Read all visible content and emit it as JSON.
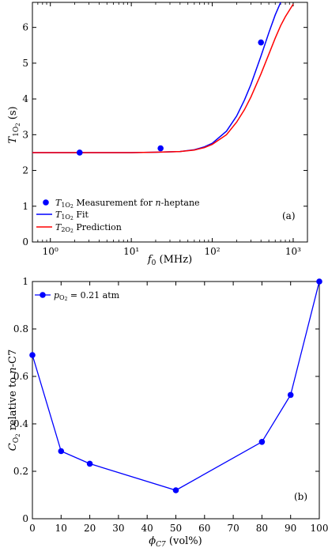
{
  "chart_data": [
    {
      "type": "line",
      "panel_label": "(a)",
      "xlabel": "f0 (MHz)",
      "ylabel": "T1O2 (s)",
      "xscale": "log",
      "xlim": [
        0.6,
        1500
      ],
      "ylim": [
        0,
        6.7
      ],
      "xticks": [
        1,
        10,
        100,
        1000
      ],
      "xtick_labels": [
        "10⁰",
        "10¹",
        "10²",
        "10³"
      ],
      "yticks": [
        0,
        1,
        2,
        3,
        4,
        5,
        6
      ],
      "ytick_labels": [
        "0",
        "1",
        "2",
        "3",
        "4",
        "5",
        "6"
      ],
      "grid": false,
      "legend_position": "bottom-left",
      "series": [
        {
          "name": "T1O2 Measurement for n-heptane",
          "kind": "markers",
          "color": "#0000ff",
          "x": [
            2.3,
            23,
            400
          ],
          "y": [
            2.5,
            2.62,
            5.58
          ]
        },
        {
          "name": "T1O2 Fit",
          "kind": "line",
          "color": "#0000ff",
          "x": [
            0.6,
            1,
            2,
            5,
            10,
            20,
            40,
            60,
            80,
            100,
            150,
            200,
            250,
            300,
            400,
            500,
            600,
            700,
            800
          ],
          "y": [
            2.5,
            2.5,
            2.5,
            2.5,
            2.5,
            2.51,
            2.53,
            2.58,
            2.66,
            2.76,
            3.1,
            3.52,
            3.97,
            4.4,
            5.2,
            5.85,
            6.35,
            6.7,
            7.0
          ]
        },
        {
          "name": "T2O2 Prediction",
          "kind": "line",
          "color": "#ff0000",
          "x": [
            0.6,
            1,
            2,
            5,
            10,
            20,
            40,
            60,
            80,
            100,
            150,
            200,
            250,
            300,
            400,
            500,
            600,
            700,
            800,
            1000
          ],
          "y": [
            2.5,
            2.5,
            2.5,
            2.5,
            2.5,
            2.51,
            2.53,
            2.57,
            2.64,
            2.73,
            3.0,
            3.35,
            3.7,
            4.05,
            4.7,
            5.25,
            5.7,
            6.05,
            6.3,
            6.65
          ]
        }
      ]
    },
    {
      "type": "line",
      "panel_label": "(b)",
      "xlabel": "ϕC7 (vol%)",
      "ylabel": "CO2 relative to n-C7",
      "xlim": [
        0,
        100
      ],
      "ylim": [
        0,
        1
      ],
      "xticks": [
        0,
        10,
        20,
        30,
        40,
        50,
        60,
        70,
        80,
        90,
        100
      ],
      "xtick_labels": [
        "0",
        "10",
        "20",
        "30",
        "40",
        "50",
        "60",
        "70",
        "80",
        "90",
        "100"
      ],
      "yticks": [
        0,
        0.2,
        0.4,
        0.6,
        0.8,
        1
      ],
      "ytick_labels": [
        "0",
        "0.2",
        "0.4",
        "0.6",
        "0.8",
        "1"
      ],
      "grid": false,
      "legend_position": "top-left",
      "series": [
        {
          "name": "pO2 = 0.21 atm",
          "kind": "line+markers",
          "color": "#0000ff",
          "x": [
            0,
            10,
            20,
            50,
            80,
            90,
            100
          ],
          "y": [
            0.69,
            0.285,
            0.232,
            0.12,
            0.324,
            0.522,
            1.0
          ]
        }
      ]
    }
  ]
}
